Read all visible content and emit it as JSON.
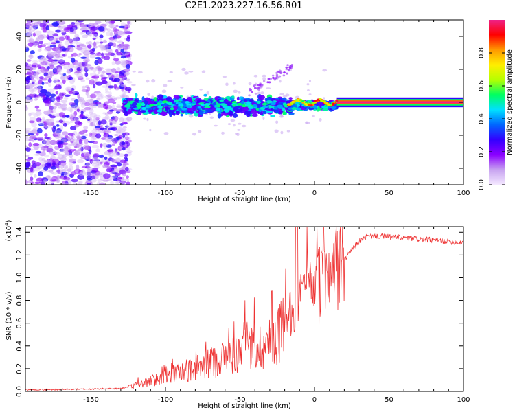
{
  "title": "C2E1.2023.227.16.56.R01",
  "colors": {
    "snr_line": "#ee3333",
    "spectrogram_body": "#7f00ff",
    "spectrogram_core": "#ff2200",
    "colormap": [
      "#f4e8ff",
      "#c7a3f0",
      "#8b00ff",
      "#3300ff",
      "#0066ff",
      "#00e0ff",
      "#00ff60",
      "#b5ff00",
      "#ffee00",
      "#ff9900",
      "#ff0000",
      "#ee2288"
    ]
  },
  "chart_data": [
    {
      "type": "heatmap",
      "name": "spectrogram",
      "xlabel": "Height of straight line (km)",
      "ylabel": "Frequency (Hz)",
      "xlim": [
        -194,
        100
      ],
      "ylim": [
        -50,
        50
      ],
      "xticks": [
        -150,
        -100,
        -50,
        0,
        50,
        100
      ],
      "xtick_labels": [
        "-150",
        "-100",
        "-50",
        "0",
        "50",
        "100"
      ],
      "yticks": [
        -40,
        -20,
        0,
        20,
        40
      ],
      "ytick_labels": [
        "-40",
        "-20",
        "0",
        "20",
        "40"
      ],
      "colorbar": {
        "label": "Normalized spectral amplitude",
        "range": [
          0,
          1
        ],
        "ticks": [
          0.0,
          0.2,
          0.4,
          0.6,
          0.8
        ],
        "tick_labels": [
          "0.0",
          "0.2",
          "0.4",
          "0.6",
          "0.8"
        ]
      },
      "features": [
        {
          "name": "broadband noise",
          "x_range": [
            -194,
            -128
          ],
          "freq_range": [
            -50,
            50
          ],
          "amplitude": [
            0.05,
            0.25
          ]
        },
        {
          "name": "scattered echo band",
          "x_range": [
            -128,
            15
          ],
          "freq_center": -2,
          "freq_halfwidth": 7,
          "amplitude": [
            0.2,
            0.55
          ]
        },
        {
          "name": "narrow line",
          "x_range": [
            15,
            100
          ],
          "freq_center": 0,
          "freq_halfwidth": 1,
          "amplitude": 1.0
        }
      ]
    },
    {
      "type": "line",
      "name": "snr",
      "xlabel": "Height of straight line (km)",
      "ylabel": "SNR (10 * v/v)",
      "y_scale_label": "(x10",
      "y_scale_exponent": "4",
      "y_scale_suffix": ")",
      "xlim": [
        -194,
        100
      ],
      "ylim": [
        0,
        1.45
      ],
      "xticks": [
        -150,
        -100,
        -50,
        0,
        50,
        100
      ],
      "xtick_labels": [
        "-150",
        "-100",
        "-50",
        "0",
        "50",
        "100"
      ],
      "yticks": [
        0.0,
        0.2,
        0.4,
        0.6,
        0.8,
        1.0,
        1.2,
        1.4
      ],
      "ytick_labels": [
        "0.0",
        "0.2",
        "0.4",
        "0.6",
        "0.8",
        "1.0",
        "1.2",
        "1.4"
      ],
      "series": [
        {
          "name": "SNR",
          "x": [
            -194,
            -175,
            -150,
            -130,
            -120,
            -110,
            -100,
            -90,
            -80,
            -70,
            -60,
            -50,
            -40,
            -30,
            -25,
            -20,
            -15,
            -12,
            -10,
            -5,
            0,
            5,
            10,
            15,
            20,
            25,
            30,
            35,
            40,
            50,
            60,
            70,
            80,
            90,
            100
          ],
          "y": [
            0.01,
            0.01,
            0.015,
            0.02,
            0.05,
            0.09,
            0.13,
            0.17,
            0.2,
            0.25,
            0.3,
            0.34,
            0.38,
            0.42,
            0.5,
            0.6,
            0.68,
            0.8,
            0.85,
            0.9,
            0.95,
            0.95,
            0.98,
            1.05,
            1.15,
            1.25,
            1.32,
            1.36,
            1.37,
            1.36,
            1.35,
            1.34,
            1.33,
            1.32,
            1.31
          ]
        }
      ]
    }
  ]
}
